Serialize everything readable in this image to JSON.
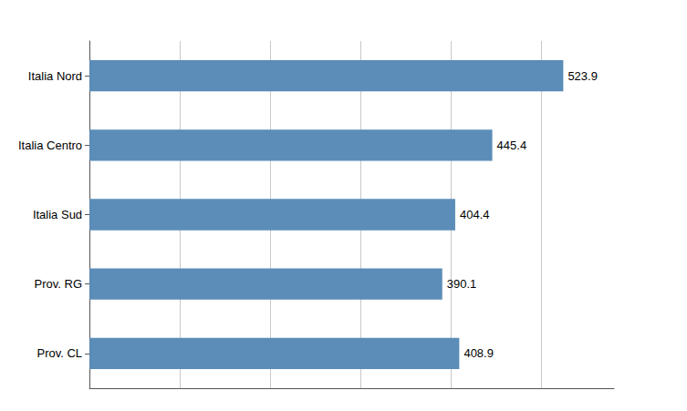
{
  "chart_data": {
    "type": "bar",
    "orientation": "horizontal",
    "categories": [
      "Prov. CL",
      "Prov. RG",
      "Italia Sud",
      "Italia Centro",
      "Italia Nord"
    ],
    "values": [
      408.9,
      390.1,
      404.4,
      445.4,
      523.9
    ],
    "color": "#5b8db8",
    "xlim": [
      0,
      580
    ],
    "xticks": [
      0,
      100,
      200,
      300,
      400,
      500
    ],
    "grid": true,
    "data_labels": true,
    "tick_labels": "y"
  }
}
